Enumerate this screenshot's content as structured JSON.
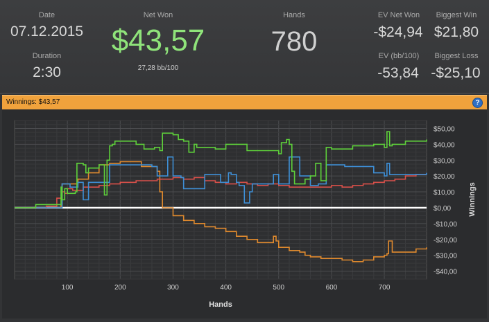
{
  "stats": {
    "date_label": "Date",
    "date_value": "07.12.2015",
    "duration_label": "Duration",
    "duration_value": "2:30",
    "net_won_label": "Net Won",
    "net_won_value": "$43,57",
    "bb_per_100": "27,28 bb/100",
    "hands_label": "Hands",
    "hands_value": "780",
    "ev_net_won_label": "EV Net Won",
    "ev_net_won_value": "-$24,94",
    "ev_bb_label": "EV (bb/100)",
    "ev_bb_value": "-53,84",
    "biggest_win_label": "Biggest Win",
    "biggest_win_value": "$21,80",
    "biggest_loss_label": "Biggest Loss",
    "biggest_loss_value": "-$25,10"
  },
  "winnings_bar": {
    "label": "Winnings: $43,57",
    "help_glyph": "?"
  },
  "colors": {
    "net_won": "#8fe37a",
    "bar": "#f0a23c",
    "green_series": "#5ed13a",
    "blue_series": "#3e8fd6",
    "red_series": "#d9504a",
    "orange_series": "#e08a2e",
    "zero_line": "#ffffff"
  },
  "chart_data": {
    "type": "line",
    "xlabel": "Hands",
    "ylabel": "Winnings",
    "xlim": [
      0,
      780
    ],
    "ylim": [
      -45,
      55
    ],
    "xticks": [
      100,
      200,
      300,
      400,
      500,
      600,
      700
    ],
    "yticks": [
      50,
      40,
      30,
      20,
      10,
      0,
      -10,
      -20,
      -30,
      -40
    ],
    "ytick_labels": [
      "$50,00",
      "$40,00",
      "$30,00",
      "$20,00",
      "$10,00",
      "$0,00",
      "-$10,00",
      "-$20,00",
      "-$30,00",
      "-$40,00"
    ],
    "grid": true,
    "series": [
      {
        "color": "#5ed13a",
        "x": [
          0,
          35,
          40,
          85,
          88,
          90,
          95,
          100,
          115,
          118,
          130,
          135,
          140,
          160,
          170,
          175,
          180,
          185,
          190,
          205,
          230,
          245,
          250,
          265,
          275,
          280,
          300,
          310,
          320,
          330,
          340,
          345,
          360,
          380,
          400,
          440,
          480,
          500,
          505,
          515,
          520,
          525,
          530,
          550,
          560,
          570,
          580,
          590,
          600,
          640,
          680,
          700,
          705,
          710,
          715,
          740,
          780
        ],
        "y": [
          0,
          0,
          2,
          2,
          13,
          5,
          12,
          9,
          10,
          28,
          27,
          22,
          25,
          27,
          8,
          30,
          39,
          40,
          42,
          42,
          40,
          37,
          37,
          38,
          36,
          47,
          46,
          43,
          42,
          35,
          40,
          38,
          38,
          37,
          40,
          36,
          36,
          34,
          41,
          43,
          40,
          23,
          15,
          18,
          20,
          28,
          17,
          38,
          37,
          39,
          40,
          38,
          48,
          39,
          40,
          42,
          43
        ]
      },
      {
        "color": "#3e8fd6",
        "x": [
          0,
          35,
          40,
          85,
          90,
          105,
          120,
          130,
          140,
          175,
          180,
          200,
          240,
          260,
          270,
          290,
          300,
          315,
          320,
          360,
          390,
          405,
          410,
          420,
          425,
          435,
          445,
          450,
          490,
          500,
          520,
          540,
          560,
          575,
          590,
          625,
          680,
          700,
          705,
          710,
          715,
          780
        ],
        "y": [
          0,
          0,
          0,
          0,
          15,
          13,
          16,
          5,
          16,
          16,
          27,
          27,
          27,
          26,
          20,
          32,
          20,
          19,
          12,
          21,
          16,
          22,
          21,
          16,
          14,
          3,
          10,
          15,
          21,
          15,
          32,
          20,
          14,
          15,
          27,
          26,
          22,
          20,
          28,
          21,
          21,
          22
        ]
      },
      {
        "color": "#d9504a",
        "x": [
          0,
          35,
          40,
          60,
          80,
          90,
          95,
          100,
          110,
          130,
          160,
          180,
          200,
          230,
          250,
          270,
          300,
          320,
          340,
          360,
          380,
          400,
          420,
          440,
          460,
          480,
          500,
          520,
          540,
          560,
          580,
          600,
          620,
          640,
          660,
          680,
          700,
          720,
          740,
          760,
          780
        ],
        "y": [
          0,
          0,
          0,
          1,
          6,
          10,
          9,
          12,
          11,
          13,
          14,
          15,
          16,
          17,
          17,
          18,
          19,
          18,
          19,
          17,
          16,
          15,
          16,
          15,
          14,
          15,
          14,
          13,
          13,
          13,
          13,
          14,
          13,
          14,
          15,
          16,
          17,
          18,
          20,
          21,
          21
        ]
      },
      {
        "color": "#e08a2e",
        "x": [
          0,
          35,
          40,
          85,
          88,
          90,
          100,
          120,
          140,
          160,
          180,
          200,
          220,
          240,
          260,
          270,
          275,
          280,
          300,
          320,
          340,
          360,
          380,
          400,
          420,
          440,
          460,
          480,
          490,
          495,
          500,
          520,
          540,
          550,
          560,
          580,
          600,
          620,
          640,
          660,
          680,
          700,
          705,
          708,
          715,
          740,
          760,
          780
        ],
        "y": [
          0,
          0,
          0,
          0,
          2,
          15,
          15,
          18,
          22,
          27,
          28,
          29,
          29,
          26,
          26,
          23,
          10,
          0,
          -5,
          -8,
          -10,
          -12,
          -13,
          -15,
          -18,
          -20,
          -22,
          -22,
          -18,
          -21,
          -25,
          -27,
          -28,
          -30,
          -31,
          -32,
          -32,
          -33,
          -34,
          -33,
          -31,
          -30,
          -29,
          -21,
          -28,
          -28,
          -26,
          -25
        ]
      }
    ],
    "zero_line": true
  }
}
